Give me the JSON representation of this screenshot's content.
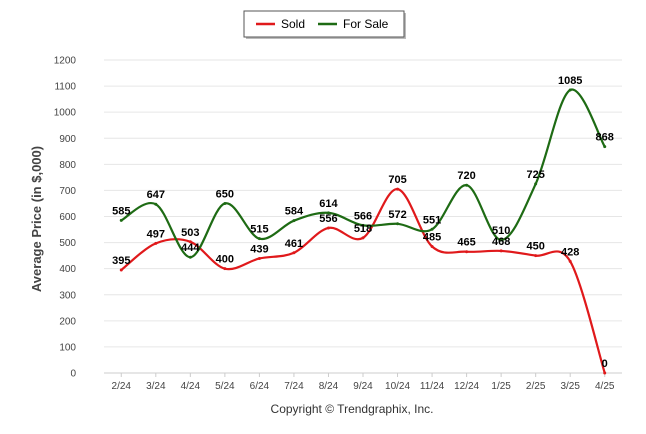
{
  "chart_data": {
    "type": "line",
    "categories": [
      "2/24",
      "3/24",
      "4/24",
      "5/24",
      "6/24",
      "7/24",
      "8/24",
      "9/24",
      "10/24",
      "11/24",
      "12/24",
      "1/25",
      "2/25",
      "3/25",
      "4/25"
    ],
    "series": [
      {
        "name": "Sold",
        "color": "#e0191b",
        "values": [
          395,
          497,
          503,
          400,
          439,
          461,
          556,
          518,
          705,
          485,
          465,
          468,
          450,
          428,
          0
        ]
      },
      {
        "name": "For Sale",
        "color": "#1e6b14",
        "values": [
          585,
          647,
          444,
          650,
          515,
          584,
          614,
          566,
          572,
          551,
          720,
          510,
          725,
          1085,
          868
        ]
      }
    ],
    "ylabel": "Average Price (in $,000)",
    "xlabel": "",
    "ylim": [
      0,
      1200
    ],
    "yticks": [
      0,
      100,
      200,
      300,
      400,
      500,
      600,
      700,
      800,
      900,
      1000,
      1100,
      1200
    ],
    "grid": true,
    "legend": "top-center",
    "footer": "Copyright © Trendgraphix, Inc."
  }
}
